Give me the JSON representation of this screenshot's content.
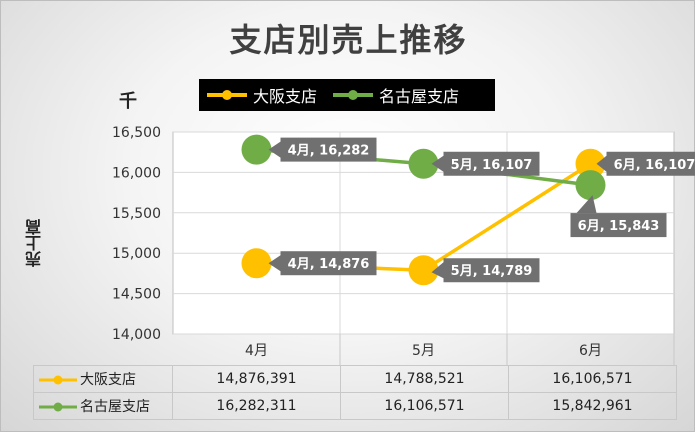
{
  "chart_data": {
    "type": "line",
    "title": "支店別売上推移",
    "ylabel": "売上高",
    "unit_label": "千",
    "categories": [
      "4月",
      "5月",
      "6月"
    ],
    "ylim": [
      14000,
      16500
    ],
    "yticks": [
      "14,000",
      "14,500",
      "15,000",
      "15,500",
      "16,000",
      "16,500"
    ],
    "ytick_values": [
      14000,
      14500,
      15000,
      15500,
      16000,
      16500
    ],
    "grid": true,
    "legend_position": "top",
    "series": [
      {
        "name": "大阪支店",
        "color": "#FFC000",
        "values": [
          14876,
          14789,
          16107
        ],
        "labels": [
          "4月, 14,876",
          "5月, 14,789",
          "6月, 16,107"
        ],
        "table_values": [
          "14,876,391",
          "14,788,521",
          "16,106,571"
        ]
      },
      {
        "name": "名古屋支店",
        "color": "#70AD47",
        "values": [
          16282,
          16107,
          15843
        ],
        "labels": [
          "4月, 16,282",
          "5月, 16,107",
          "6月, 15,843"
        ],
        "table_values": [
          "16,282,311",
          "16,106,571",
          "15,842,961"
        ]
      }
    ]
  }
}
